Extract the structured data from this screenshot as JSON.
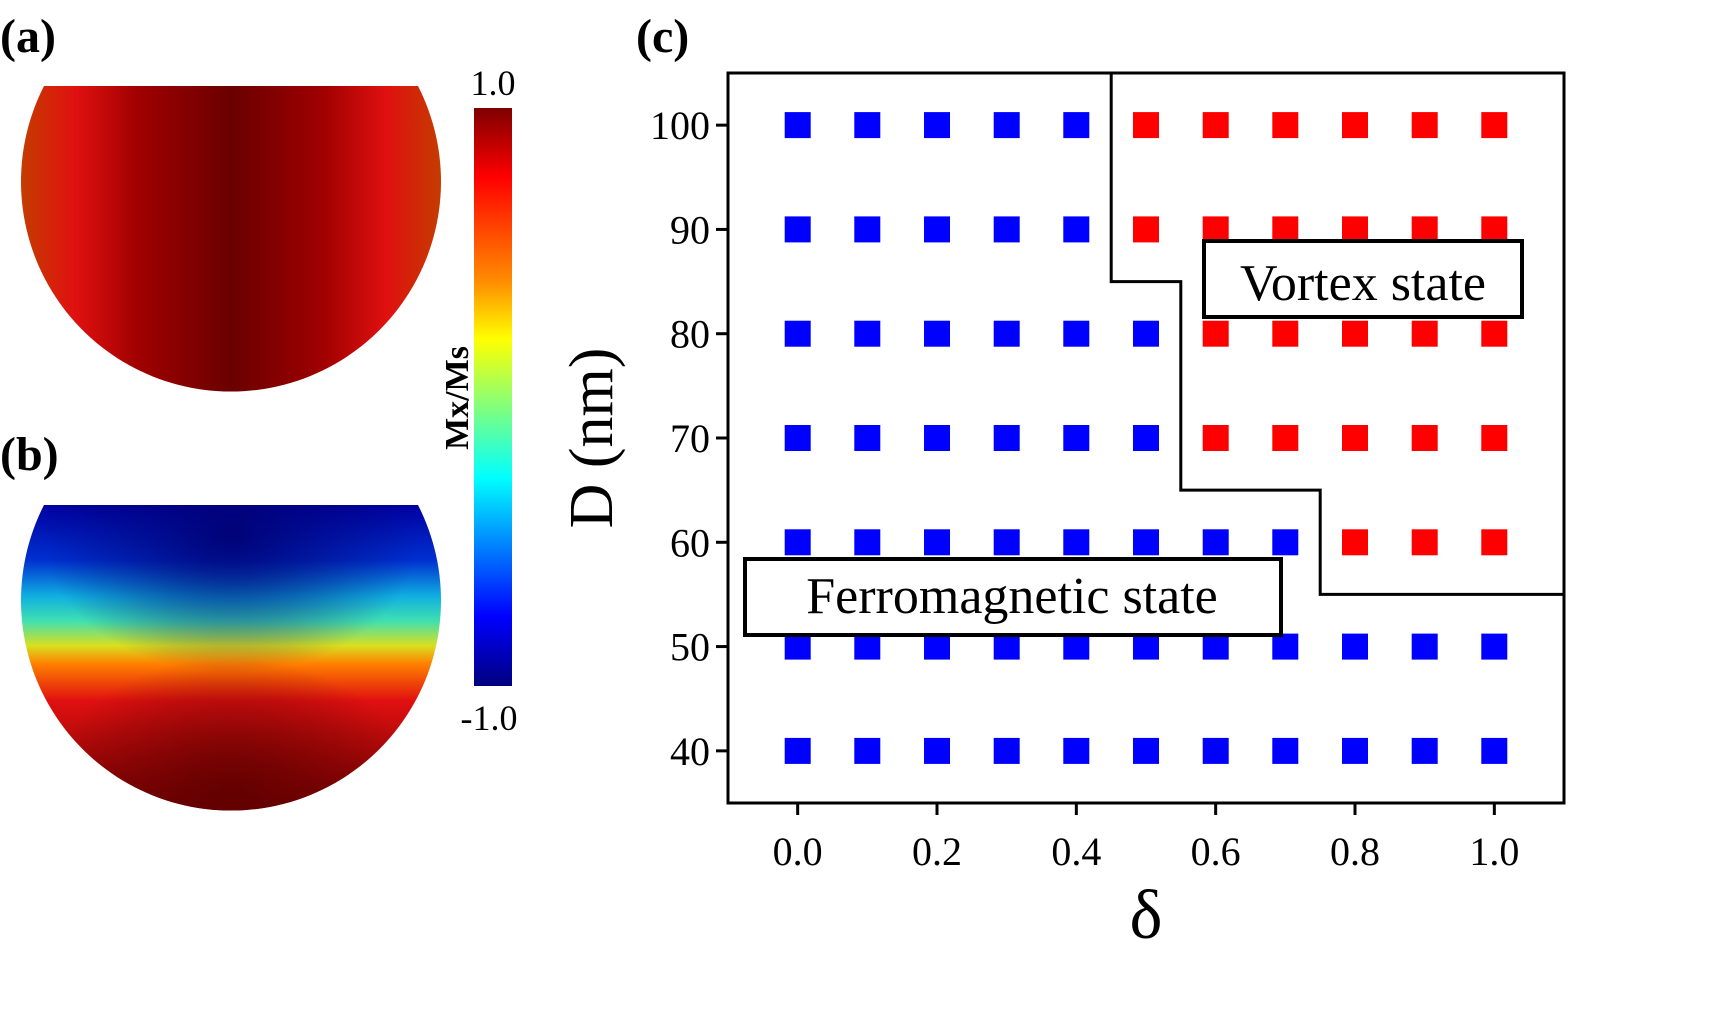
{
  "panels": {
    "a": {
      "label": "(a)",
      "description": "Mx/Ms map, ferromagnetic state"
    },
    "b": {
      "label": "(b)",
      "description": "Mx/Ms map, vortex state"
    },
    "c": {
      "label": "(c)"
    }
  },
  "colorbar": {
    "label": "Mx/Ms",
    "max_label": "1.0",
    "min_label": "-1.0",
    "colors": [
      "#7f0000",
      "#ff0000",
      "#ff8c00",
      "#ffff00",
      "#7fff7f",
      "#00ffff",
      "#0080ff",
      "#0000ff",
      "#00007f"
    ]
  },
  "chart_data": {
    "type": "scatter",
    "title": "",
    "xlabel": "δ",
    "ylabel": "D (nm)",
    "xlim": [
      -0.1,
      1.1
    ],
    "ylim": [
      35,
      105
    ],
    "xticks": [
      "0.0",
      "0.2",
      "0.4",
      "0.6",
      "0.8",
      "1.0"
    ],
    "xtick_values": [
      0.0,
      0.2,
      0.4,
      0.6,
      0.8,
      1.0
    ],
    "yticks": [
      "40",
      "50",
      "60",
      "70",
      "80",
      "90",
      "100"
    ],
    "ytick_values": [
      40,
      50,
      60,
      70,
      80,
      90,
      100
    ],
    "marker": "square",
    "series": [
      {
        "name": "Ferromagnetic",
        "color": "#0000ff",
        "points": [
          [
            0.0,
            100
          ],
          [
            0.1,
            100
          ],
          [
            0.2,
            100
          ],
          [
            0.3,
            100
          ],
          [
            0.4,
            100
          ],
          [
            0.0,
            90
          ],
          [
            0.1,
            90
          ],
          [
            0.2,
            90
          ],
          [
            0.3,
            90
          ],
          [
            0.4,
            90
          ],
          [
            0.0,
            80
          ],
          [
            0.1,
            80
          ],
          [
            0.2,
            80
          ],
          [
            0.3,
            80
          ],
          [
            0.4,
            80
          ],
          [
            0.5,
            80
          ],
          [
            0.0,
            70
          ],
          [
            0.1,
            70
          ],
          [
            0.2,
            70
          ],
          [
            0.3,
            70
          ],
          [
            0.4,
            70
          ],
          [
            0.5,
            70
          ],
          [
            0.0,
            60
          ],
          [
            0.1,
            60
          ],
          [
            0.2,
            60
          ],
          [
            0.3,
            60
          ],
          [
            0.4,
            60
          ],
          [
            0.5,
            60
          ],
          [
            0.6,
            60
          ],
          [
            0.7,
            60
          ],
          [
            0.0,
            50
          ],
          [
            0.1,
            50
          ],
          [
            0.2,
            50
          ],
          [
            0.3,
            50
          ],
          [
            0.4,
            50
          ],
          [
            0.5,
            50
          ],
          [
            0.6,
            50
          ],
          [
            0.7,
            50
          ],
          [
            0.8,
            50
          ],
          [
            0.9,
            50
          ],
          [
            1.0,
            50
          ],
          [
            0.0,
            40
          ],
          [
            0.1,
            40
          ],
          [
            0.2,
            40
          ],
          [
            0.3,
            40
          ],
          [
            0.4,
            40
          ],
          [
            0.5,
            40
          ],
          [
            0.6,
            40
          ],
          [
            0.7,
            40
          ],
          [
            0.8,
            40
          ],
          [
            0.9,
            40
          ],
          [
            1.0,
            40
          ]
        ]
      },
      {
        "name": "Vortex",
        "color": "#ff0000",
        "points": [
          [
            0.5,
            100
          ],
          [
            0.6,
            100
          ],
          [
            0.7,
            100
          ],
          [
            0.8,
            100
          ],
          [
            0.9,
            100
          ],
          [
            1.0,
            100
          ],
          [
            0.5,
            90
          ],
          [
            0.6,
            90
          ],
          [
            0.7,
            90
          ],
          [
            0.8,
            90
          ],
          [
            0.9,
            90
          ],
          [
            1.0,
            90
          ],
          [
            0.6,
            80
          ],
          [
            0.7,
            80
          ],
          [
            0.8,
            80
          ],
          [
            0.9,
            80
          ],
          [
            1.0,
            80
          ],
          [
            0.6,
            70
          ],
          [
            0.7,
            70
          ],
          [
            0.8,
            70
          ],
          [
            0.9,
            70
          ],
          [
            1.0,
            70
          ],
          [
            0.8,
            60
          ],
          [
            0.9,
            60
          ],
          [
            1.0,
            60
          ]
        ]
      }
    ],
    "boundary": [
      [
        0.45,
        105
      ],
      [
        0.45,
        85
      ],
      [
        0.55,
        85
      ],
      [
        0.55,
        65
      ],
      [
        0.75,
        65
      ],
      [
        0.75,
        55
      ],
      [
        1.1,
        55
      ]
    ],
    "annotations": [
      {
        "text": "Vortex state",
        "x": 0.82,
        "y": 85
      },
      {
        "text": "Ferromagnetic state",
        "x": 0.195,
        "y": 56
      }
    ]
  }
}
